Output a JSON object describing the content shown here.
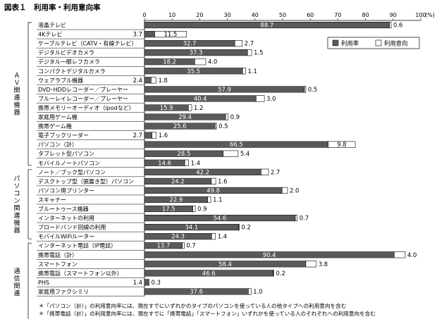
{
  "figure": {
    "title": "図表１　利用率・利用意向率",
    "notes": [
      "＊「パソコン（計）」の利用意向率には、現在すでにいずれかのタイプのパソコンを使っている人の他タイプへの利用意向を含む",
      "＊「携帯電話（計）」の利用意向率には、現在すでに「携帯電話」「スマートフォン」いずれかを使っている人のそれぞれへの利用意向を含む"
    ]
  },
  "chart_data": {
    "type": "bar",
    "orientation": "horizontal",
    "stacked": true,
    "unit": "(%)",
    "xlim": [
      0,
      100
    ],
    "xticks": [
      "0",
      "10",
      "20",
      "30",
      "40",
      "50",
      "60",
      "70",
      "80",
      "90",
      "100"
    ],
    "legend": {
      "position": "top-right",
      "entries": [
        "利用率",
        "利用意向"
      ]
    },
    "colors": {
      "usage": "#5a5a5a",
      "intent": "#ffffff",
      "outline": "#000000"
    },
    "groups": [
      {
        "label": "AV関連機器",
        "chars": [
          "Ａ",
          "Ｖ",
          "関",
          "連",
          "機",
          "器"
        ],
        "start": 0,
        "end": 15
      },
      {
        "label": "パソコン関連機器",
        "chars": [
          "パ",
          "ソ",
          "コ",
          "ン",
          "関",
          "連",
          "機",
          "器"
        ],
        "start": 16,
        "end": 23
      },
      {
        "label": "通信関連",
        "chars": [
          "通",
          "信",
          "関",
          "連"
        ],
        "start": 24,
        "end": 32
      }
    ],
    "categories": [
      "液晶テレビ",
      "4Kテレビ",
      "ケーブルテレビ（CATV・有線テレビ）",
      "デジタルビデオカメラ",
      "デジタル一眼レフカメラ",
      "コンパクトデジタルカメラ",
      "ウェアラブル機器",
      "DVD･HDDレコーダー／プレーヤー",
      "ブルーレイレコーダー／プレーヤー",
      "携帯メモリーオーディオ（ipodなど）",
      "家庭用ゲーム機",
      "携帯ゲーム機",
      "電子ブックリーダー",
      "パソコン（計）",
      "タブレット型パソコン",
      "モバイルノートパソコン",
      "ノート／ブック型パソコン",
      "デスクトップ型（据置き型）パソコン",
      "パソコン用プリンター",
      "スキャナー",
      "ブルートゥース機器",
      "インターネットの利用",
      "ブロードバンド回線の利用",
      "モバイルWiFiルーター",
      "インターネット電話（IP電話）",
      "携帯電話（計）",
      "スマートフォン",
      "携帯電話（スマートフォン以外）",
      "PHS",
      "家庭用ファクシミリ"
    ],
    "series": [
      {
        "name": "利用率",
        "values": [
          88.7,
          3.7,
          32.7,
          37.3,
          18.2,
          35.5,
          2.4,
          57.9,
          40.4,
          15.9,
          29.4,
          25.6,
          2.7,
          66.5,
          28.5,
          14.6,
          42.2,
          24.2,
          49.8,
          22.9,
          17.5,
          54.6,
          34.1,
          24.3,
          13.7,
          90.4,
          58.4,
          46.6,
          1.4,
          37.6
        ]
      },
      {
        "name": "利用意向",
        "values": [
          0.6,
          11.5,
          2.7,
          1.5,
          4.0,
          1.1,
          1.8,
          0.5,
          3.0,
          1.2,
          0.9,
          0.5,
          1.6,
          9.8,
          5.4,
          1.4,
          2.7,
          1.6,
          2.0,
          1.1,
          0.9,
          0.7,
          0.2,
          1.4,
          0.7,
          4.0,
          3.8,
          0.2,
          0.3,
          1.0
        ]
      }
    ],
    "usage_labels": [
      "88.7",
      "3.7",
      "32.7",
      "37.3",
      "18.2",
      "35.5",
      "2.4",
      "57.9",
      "40.4",
      "15.9",
      "29.4",
      "25.6",
      "2.7",
      "66.5",
      "28.5",
      "14.6",
      "42.2",
      "24.2",
      "49.8",
      "22.9",
      "17.5",
      "54.6",
      "34.1",
      "24.3",
      "13.7",
      "90.4",
      "58.4",
      "46.6",
      "1.4",
      "37.6"
    ],
    "intent_labels": [
      "0.6",
      "11.5",
      "2.7",
      "1.5",
      "4.0",
      "1.1",
      "1.8",
      "0.5",
      "3.0",
      "1.2",
      "0.9",
      "0.5",
      "1.6",
      "9.8",
      "5.4",
      "1.4",
      "2.7",
      "1.6",
      "2.0",
      "1.1",
      "0.9",
      "0.7",
      "0.2",
      "1.4",
      "0.7",
      "4.0",
      "3.8",
      "0.2",
      "0.3",
      "1.0"
    ]
  }
}
